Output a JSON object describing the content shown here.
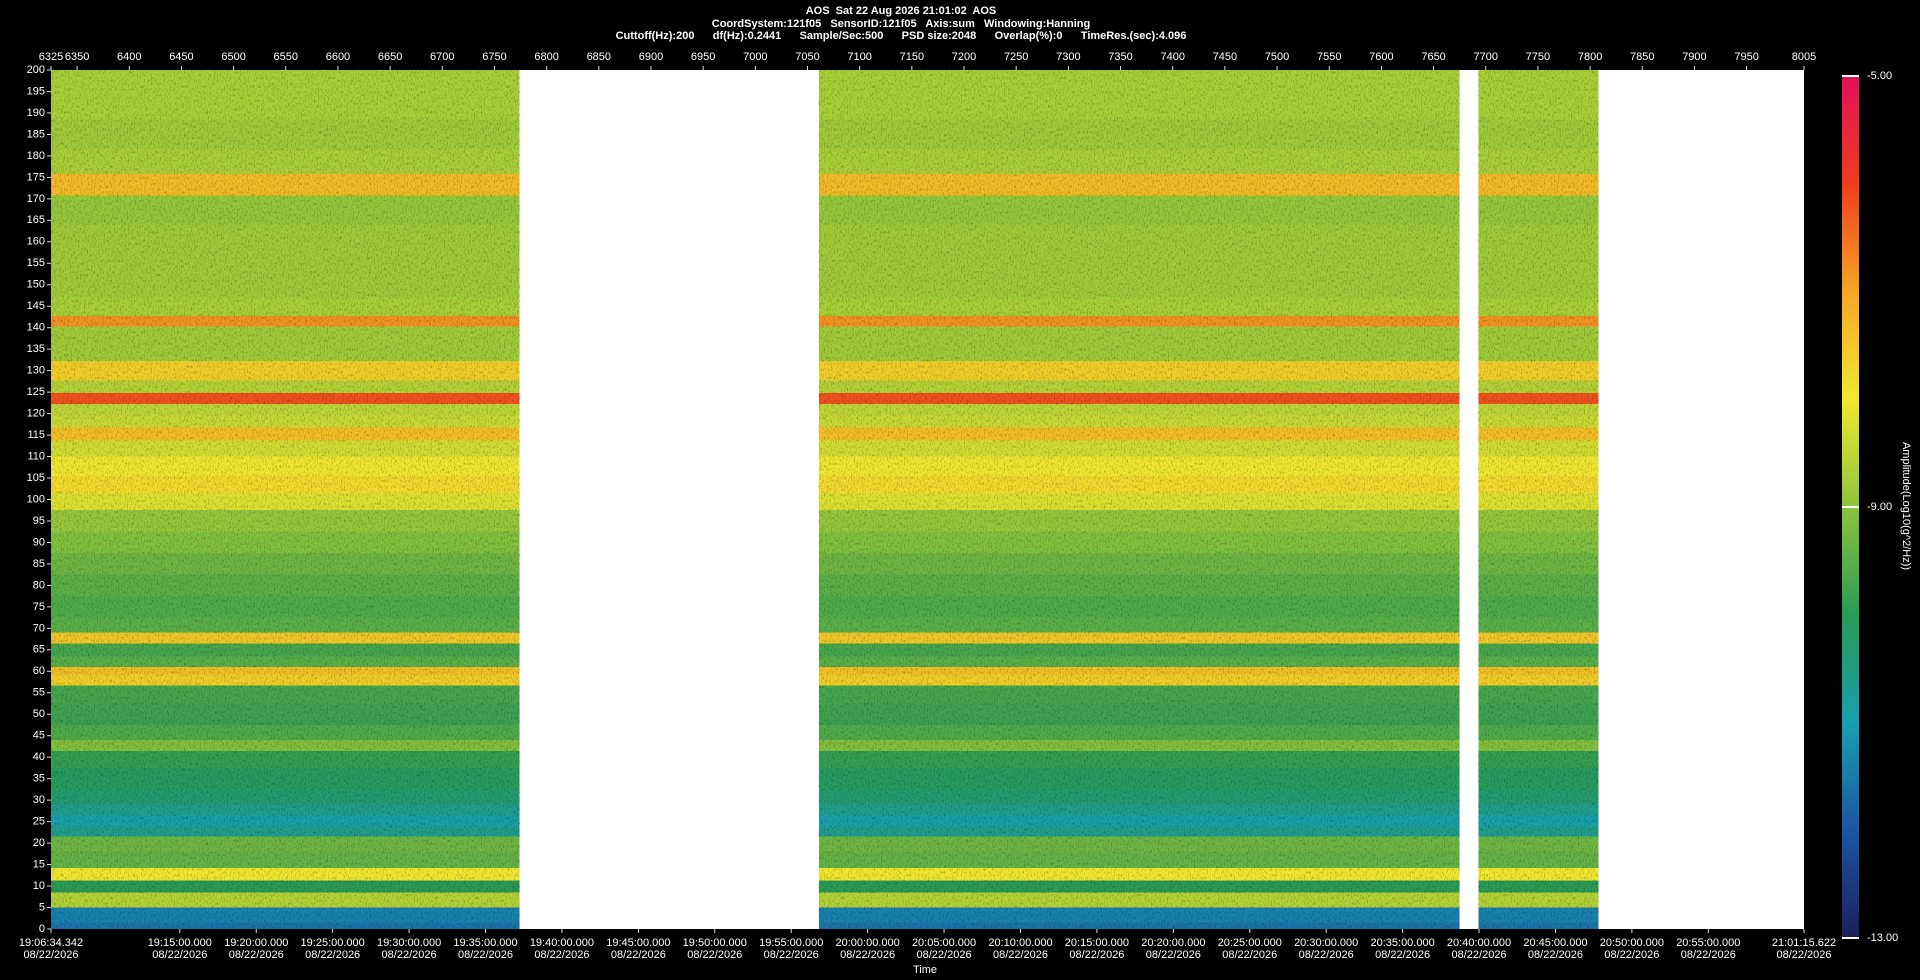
{
  "chart_data": {
    "type": "spectrogram",
    "title": "AOS  Sat 22 Aug 2026 21:01:02  AOS",
    "subtitle": "CoordSystem:121f05   SensorID:121f05   Axis:sum   Windowing:Hanning",
    "subtitle2": "Cuttoff(Hz):200      df(Hz):0.2441      Sample/Sec:500      PSD size:2048      Overlap(%):0      TimeRes.(sec):4.096",
    "xlabel": "Time",
    "xlim": [
      6325,
      8005
    ],
    "xticks": [
      6325,
      6350,
      6400,
      6450,
      6500,
      6550,
      6600,
      6650,
      6700,
      6750,
      6800,
      6850,
      6900,
      6950,
      7000,
      7050,
      7100,
      7150,
      7200,
      7250,
      7300,
      7350,
      7400,
      7450,
      7500,
      7550,
      7600,
      7650,
      7700,
      7750,
      7800,
      7850,
      7900,
      7950,
      8005
    ],
    "time_ticks": [
      {
        "value": 6325,
        "label": "19:06:34.342",
        "date": "08/22/2026"
      },
      {
        "value": 6448.45,
        "label": "19:15:00.000",
        "date": "08/22/2026"
      },
      {
        "value": 6521.7,
        "label": "19:20:00.000",
        "date": "08/22/2026"
      },
      {
        "value": 6594.94,
        "label": "19:25:00.000",
        "date": "08/22/2026"
      },
      {
        "value": 6668.18,
        "label": "19:30:00.000",
        "date": "08/22/2026"
      },
      {
        "value": 6741.42,
        "label": "19:35:00.000",
        "date": "08/22/2026"
      },
      {
        "value": 6814.66,
        "label": "19:40:00.000",
        "date": "08/22/2026"
      },
      {
        "value": 6887.91,
        "label": "19:45:00.000",
        "date": "08/22/2026"
      },
      {
        "value": 6961.15,
        "label": "19:50:00.000",
        "date": "08/22/2026"
      },
      {
        "value": 7034.39,
        "label": "19:55:00.000",
        "date": "08/22/2026"
      },
      {
        "value": 7107.63,
        "label": "20:00:00.000",
        "date": "08/22/2026"
      },
      {
        "value": 7180.87,
        "label": "20:05:00.000",
        "date": "08/22/2026"
      },
      {
        "value": 7254.12,
        "label": "20:10:00.000",
        "date": "08/22/2026"
      },
      {
        "value": 7327.36,
        "label": "20:15:00.000",
        "date": "08/22/2026"
      },
      {
        "value": 7400.6,
        "label": "20:20:00.000",
        "date": "08/22/2026"
      },
      {
        "value": 7473.84,
        "label": "20:25:00.000",
        "date": "08/22/2026"
      },
      {
        "value": 7547.08,
        "label": "20:30:00.000",
        "date": "08/22/2026"
      },
      {
        "value": 7620.33,
        "label": "20:35:00.000",
        "date": "08/22/2026"
      },
      {
        "value": 7693.57,
        "label": "20:40:00.000",
        "date": "08/22/2026"
      },
      {
        "value": 7766.81,
        "label": "20:45:00.000",
        "date": "08/22/2026"
      },
      {
        "value": 7840.05,
        "label": "20:50:00.000",
        "date": "08/22/2026"
      },
      {
        "value": 7913.29,
        "label": "20:55:00.000",
        "date": "08/22/2026"
      },
      {
        "value": 8005,
        "label": "21:01:15.622",
        "date": "08/22/2026"
      }
    ],
    "ylim": [
      0,
      200
    ],
    "yticks": [
      0,
      5,
      10,
      15,
      20,
      25,
      30,
      35,
      40,
      45,
      50,
      55,
      60,
      65,
      70,
      75,
      80,
      85,
      90,
      95,
      100,
      105,
      110,
      115,
      120,
      125,
      130,
      135,
      140,
      145,
      150,
      155,
      160,
      165,
      170,
      175,
      180,
      185,
      190,
      195,
      200
    ],
    "segments": [
      [
        6325,
        6774
      ],
      [
        7061,
        7675
      ],
      [
        7693,
        7808
      ]
    ],
    "freqs": [
      0,
      3,
      7,
      10,
      12.5,
      16,
      20,
      23,
      25,
      28,
      30,
      35,
      40,
      43,
      45,
      50,
      55,
      58.5,
      60,
      62,
      65,
      68,
      70,
      75,
      80,
      85,
      90,
      95,
      100,
      103,
      108,
      112,
      115.5,
      118,
      121,
      123.5,
      126,
      129.5,
      135,
      139,
      141.5,
      144,
      150,
      160,
      168,
      173.5,
      178,
      185,
      192,
      200
    ],
    "levels": [
      -11.6,
      -11.4,
      -8.6,
      -10.0,
      -8.0,
      -9.4,
      -9.3,
      -10.6,
      -10.9,
      -10.6,
      -10.3,
      -10.1,
      -9.9,
      -9.1,
      -9.6,
      -9.8,
      -9.7,
      -7.6,
      -7.4,
      -9.5,
      -9.7,
      -7.5,
      -9.5,
      -9.6,
      -9.5,
      -9.3,
      -9.1,
      -8.9,
      -8.2,
      -7.8,
      -8.0,
      -8.3,
      -7.4,
      -8.4,
      -8.5,
      -6.2,
      -8.6,
      -7.6,
      -8.8,
      -8.8,
      -6.8,
      -8.7,
      -8.8,
      -8.8,
      -8.9,
      -7.3,
      -8.7,
      -8.8,
      -8.7,
      -8.7
    ],
    "colorbar": {
      "label": "Amplitude(Log10(g^2/Hz))",
      "zlim": [
        -13,
        -5
      ],
      "ticks": [
        {
          "value": -5,
          "label": "-5.00"
        },
        {
          "value": -9,
          "label": "-9.00"
        },
        {
          "value": -13,
          "label": "-13.00"
        }
      ],
      "colors": [
        "#1b1f5a",
        "#1c55a5",
        "#17a0b0",
        "#2a9a55",
        "#8cc43c",
        "#f0e830",
        "#f5a623",
        "#f03c1e",
        "#e0105a"
      ]
    }
  }
}
